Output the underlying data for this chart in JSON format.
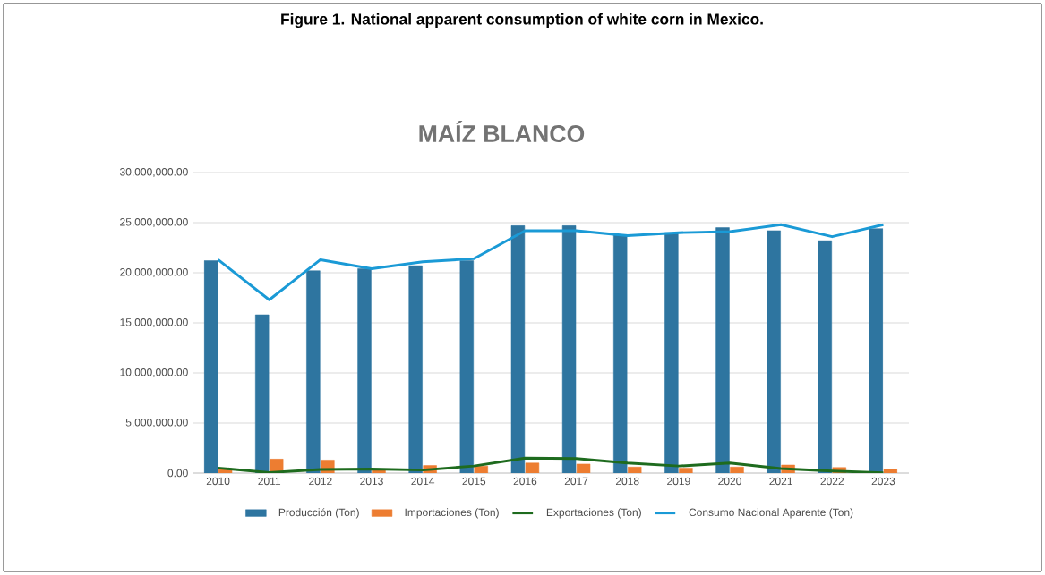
{
  "chart_data": {
    "type": "bar",
    "title": "Figure 1. National apparent consumption of white corn in Mexico.",
    "subtitle": "MAÍZ BLANCO",
    "categories": [
      "2010",
      "2011",
      "2012",
      "2013",
      "2014",
      "2015",
      "2016",
      "2017",
      "2018",
      "2019",
      "2020",
      "2021",
      "2022",
      "2023"
    ],
    "series": [
      {
        "name": "Producción (Ton)",
        "color": "#2e75a0",
        "values": [
          21200000,
          15800000,
          20200000,
          20400000,
          20700000,
          21200000,
          24700000,
          24700000,
          23800000,
          24000000,
          24500000,
          24200000,
          23200000,
          24400000
        ]
      },
      {
        "name": "Importaciones (Ton)",
        "color": "#ed7d31",
        "values": [
          450000,
          1400000,
          1300000,
          300000,
          750000,
          700000,
          1000000,
          900000,
          600000,
          500000,
          600000,
          800000,
          550000,
          350000
        ]
      },
      {
        "name": "Exportaciones  (Ton)",
        "type": "line",
        "color": "#1e6b1e",
        "values": [
          500000,
          50000,
          350000,
          400000,
          300000,
          700000,
          1500000,
          1450000,
          1000000,
          700000,
          1000000,
          450000,
          200000,
          30000
        ]
      },
      {
        "name": "Consumo Nacional Aparente (Ton)",
        "type": "line",
        "color": "#1a9ad6",
        "values": [
          21300000,
          17300000,
          21300000,
          20400000,
          21100000,
          21400000,
          24200000,
          24200000,
          23700000,
          24000000,
          24100000,
          24800000,
          23600000,
          24800000
        ]
      }
    ],
    "ylim": [
      0,
      30000000
    ],
    "yticks": [
      {
        "value": 0,
        "label": "0.00"
      },
      {
        "value": 5000000,
        "label": "5,000,000.00"
      },
      {
        "value": 10000000,
        "label": "10,000,000.00"
      },
      {
        "value": 15000000,
        "label": "15,000,000.00"
      },
      {
        "value": 20000000,
        "label": "20,000,000.00"
      },
      {
        "value": 25000000,
        "label": "25,000,000.00"
      },
      {
        "value": 30000000,
        "label": "30,000,000.00"
      }
    ],
    "grid": "y",
    "legend": "bottom"
  }
}
